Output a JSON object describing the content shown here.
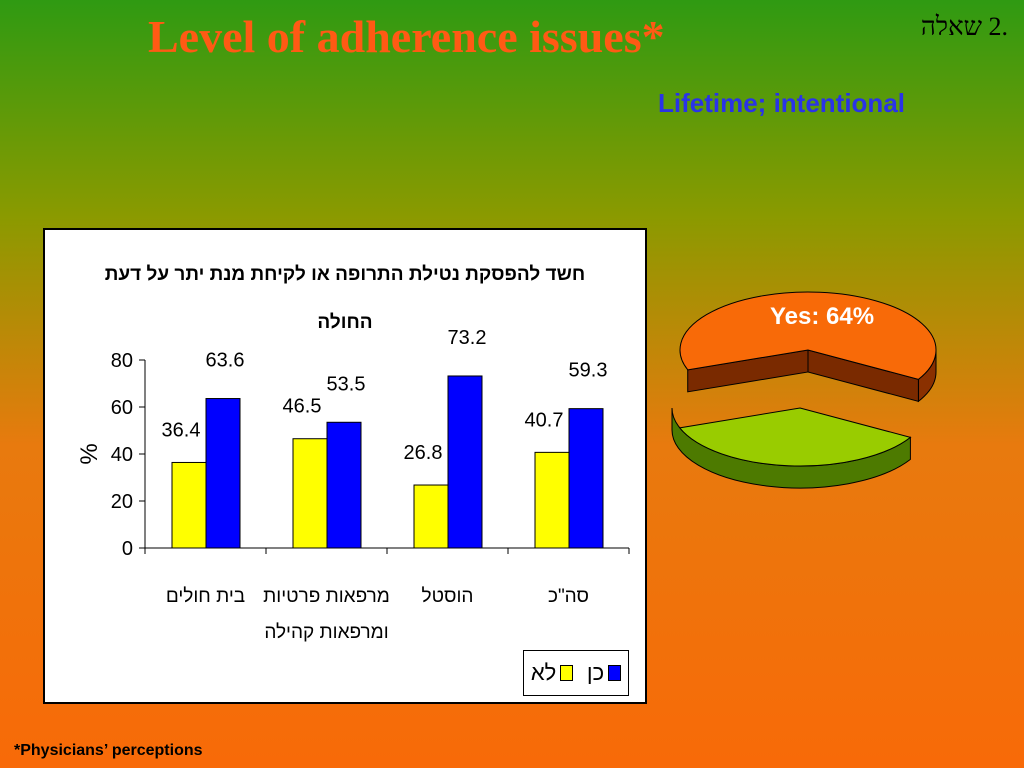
{
  "slide": {
    "title": "Level of adherence issues*",
    "question_label": ".2 שאלה",
    "subtitle": "Lifetime; intentional",
    "footnote": "*Physicians’ perceptions"
  },
  "colors": {
    "no": "#ffff00",
    "yes": "#0000ff",
    "pie_yes": "#f86a08",
    "pie_no": "#99cc00",
    "title": "#ff5a14",
    "subtitle": "#2a33e8"
  },
  "chart_data": [
    {
      "type": "bar",
      "title_line1": "חשד להפסקת נטילת התרופה או לקיחת מנת יתר על דעת",
      "title_line2": "החולה",
      "ylabel": "%",
      "ylim": [
        0,
        80
      ],
      "yticks": [
        0,
        20,
        40,
        60,
        80
      ],
      "categories": [
        [
          "בית חולים"
        ],
        [
          "מרפאות פרטיות",
          "ומרפאות קהילה"
        ],
        [
          "הוסטל"
        ],
        [
          "סה\"כ"
        ]
      ],
      "series": [
        {
          "name": "לא",
          "values": [
            36.4,
            46.5,
            26.8,
            40.7
          ]
        },
        {
          "name": "כן",
          "values": [
            63.6,
            53.5,
            73.2,
            59.3
          ]
        }
      ],
      "legend": "bottom-right"
    },
    {
      "type": "pie",
      "slices": [
        {
          "label": "Yes: 64%",
          "value": 64
        },
        {
          "value": 36
        }
      ]
    }
  ]
}
